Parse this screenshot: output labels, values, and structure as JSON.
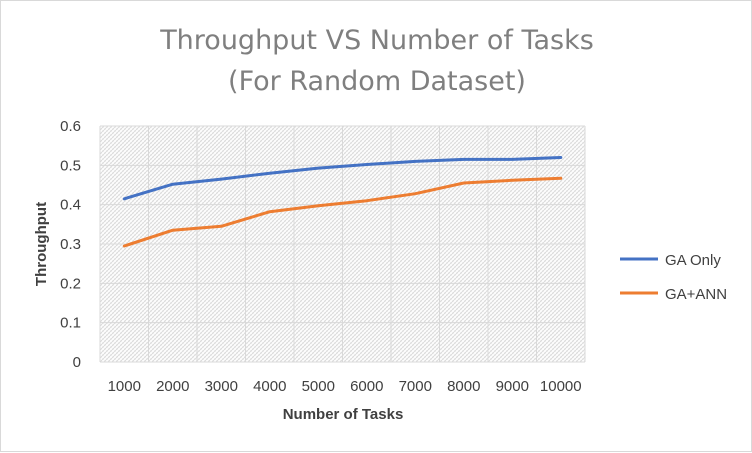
{
  "chart_data": {
    "type": "line",
    "title_lines": [
      "Throughput VS Number of Tasks",
      "(For Random Dataset)"
    ],
    "xlabel": "Number of Tasks",
    "ylabel": "Throughput",
    "categories": [
      "1000",
      "2000",
      "3000",
      "4000",
      "5000",
      "6000",
      "7000",
      "8000",
      "9000",
      "10000"
    ],
    "y_ticks": [
      "0",
      "0.1",
      "0.2",
      "0.3",
      "0.4",
      "0.5",
      "0.6"
    ],
    "ylim": [
      0,
      0.6
    ],
    "grid": true,
    "legend_position": "right",
    "series": [
      {
        "name": "GA Only",
        "color": "#4472c4",
        "values": [
          0.415,
          0.452,
          0.465,
          0.48,
          0.493,
          0.502,
          0.51,
          0.515,
          0.515,
          0.52
        ]
      },
      {
        "name": "GA+ANN",
        "color": "#ed7d31",
        "values": [
          0.295,
          0.335,
          0.345,
          0.382,
          0.397,
          0.41,
          0.428,
          0.455,
          0.462,
          0.467
        ]
      }
    ]
  }
}
